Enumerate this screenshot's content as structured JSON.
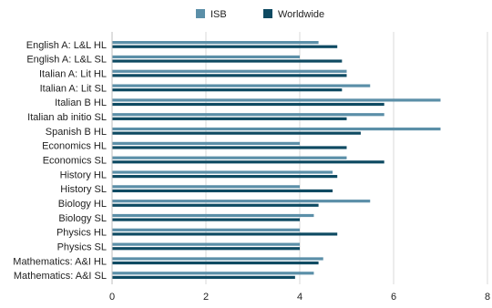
{
  "chart_data": {
    "type": "bar",
    "orientation": "horizontal",
    "categories": [
      "English A: L&L HL",
      "English A: L&L SL",
      "Italian A: Lit HL",
      "Italian A: Lit SL",
      "Italian B HL",
      "Italian ab initio SL",
      "Spanish B HL",
      "Economics HL",
      "Economics SL",
      "History HL",
      "History SL",
      "Biology HL",
      "Biology SL",
      "Physics HL",
      "Physics SL",
      "Mathematics: A&I HL",
      "Mathematics: A&I SL"
    ],
    "series": [
      {
        "name": "ISB",
        "color": "#5b8fa8",
        "values": [
          4.4,
          4.0,
          5.0,
          5.5,
          7.0,
          5.8,
          7.0,
          4.0,
          5.0,
          4.7,
          4.0,
          5.5,
          4.3,
          4.0,
          4.0,
          4.5,
          4.3
        ]
      },
      {
        "name": "Worldwide",
        "color": "#0e4a62",
        "values": [
          4.8,
          4.9,
          5.0,
          4.9,
          5.8,
          5.0,
          5.3,
          5.0,
          5.8,
          4.8,
          4.7,
          4.4,
          4.0,
          4.8,
          4.0,
          4.4,
          3.9
        ]
      }
    ],
    "xlim": [
      0,
      8
    ],
    "x_ticks": [
      "0",
      "2",
      "4",
      "6",
      "8"
    ],
    "title": "",
    "xlabel": "",
    "ylabel": "",
    "grid": "vertical",
    "legend_position": "top-center"
  }
}
